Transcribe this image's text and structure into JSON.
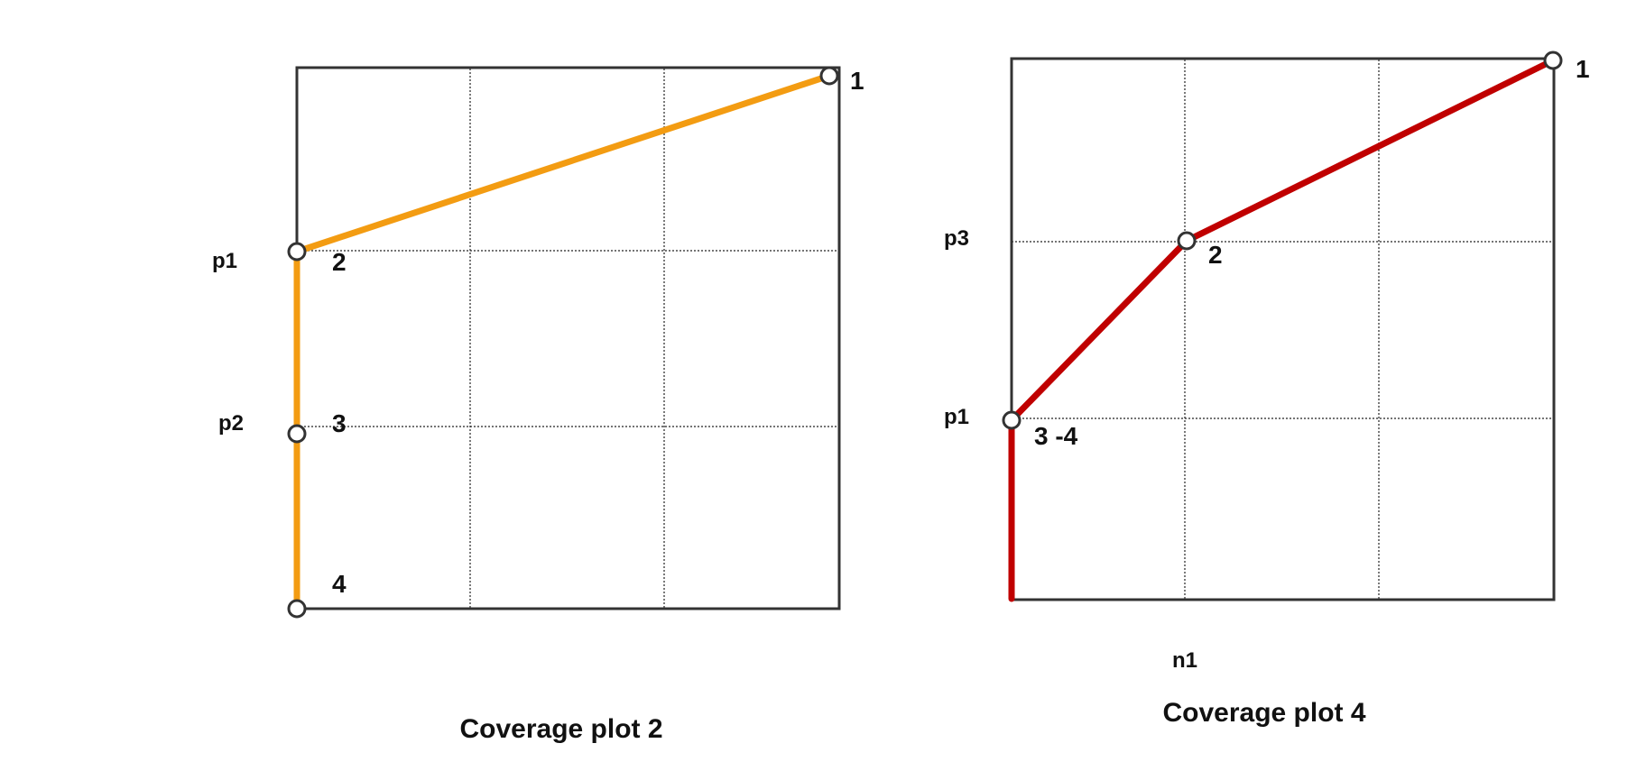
{
  "colors": {
    "plot2_line": "#F39C12",
    "plot4_line": "#C00000",
    "frame": "#333333"
  },
  "plots": [
    {
      "id": "plot2",
      "title": "Coverage plot 2",
      "row_labels": [
        "p1",
        "p2"
      ],
      "column_labels": [],
      "points": [
        {
          "label": "1"
        },
        {
          "label": "2"
        },
        {
          "label": "3"
        },
        {
          "label": "4"
        }
      ]
    },
    {
      "id": "plot4",
      "title": "Coverage plot 4",
      "row_labels": [
        "p3",
        "p1"
      ],
      "column_labels": [
        "n1"
      ],
      "points": [
        {
          "label": "1"
        },
        {
          "label": "2"
        },
        {
          "label": "3 -4"
        }
      ]
    }
  ]
}
